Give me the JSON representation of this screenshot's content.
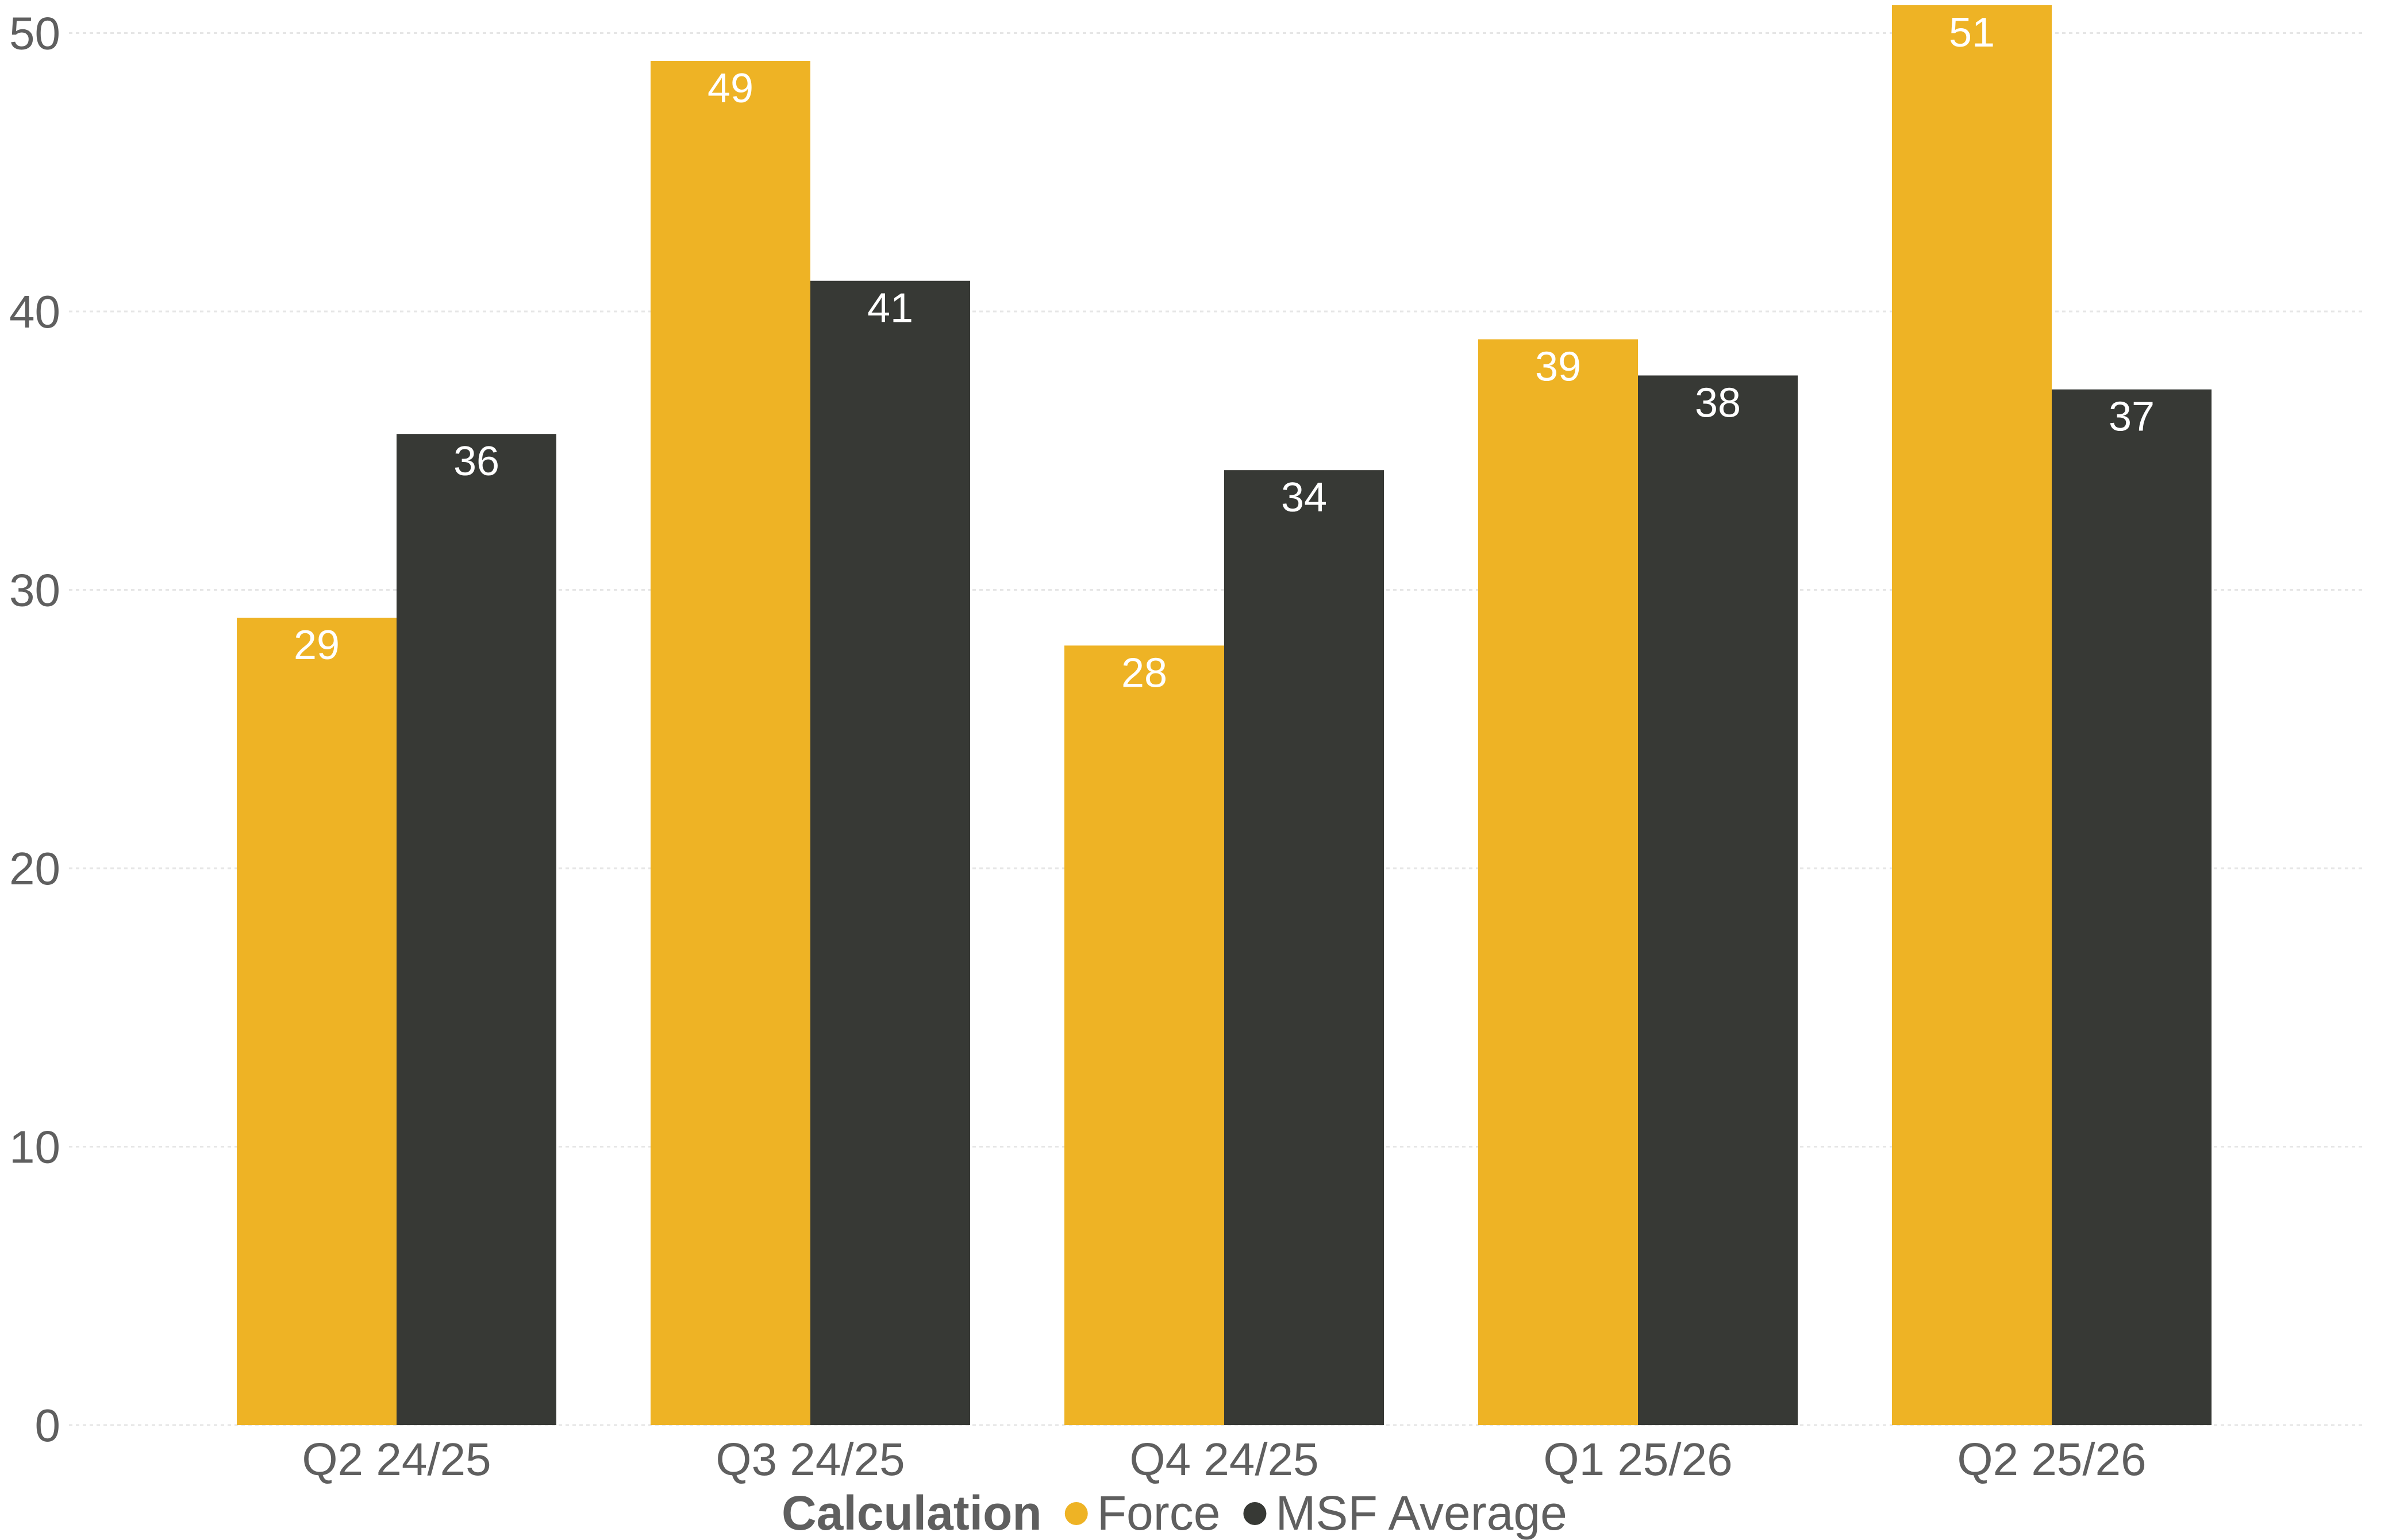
{
  "chart_data": {
    "type": "bar",
    "categories": [
      "Q2 24/25",
      "Q3 24/25",
      "Q4 24/25",
      "Q1 25/26",
      "Q2 25/26"
    ],
    "series": [
      {
        "name": "Force",
        "color": "#EEB325",
        "values": [
          29,
          49,
          28,
          39,
          51
        ],
        "labels": [
          "29",
          "49",
          "28",
          "39",
          "51"
        ]
      },
      {
        "name": "MSF Average",
        "color": "#373935",
        "values": [
          35.6,
          41.1,
          34.3,
          37.7,
          37.2
        ],
        "labels": [
          "36",
          "41",
          "34",
          "38",
          "37"
        ]
      }
    ],
    "ylim": [
      0,
      51
    ],
    "yticks": [
      0,
      10,
      20,
      30,
      40,
      50
    ],
    "grid": true,
    "legend": {
      "title": "Calculation",
      "placement": "bottom-center"
    }
  }
}
